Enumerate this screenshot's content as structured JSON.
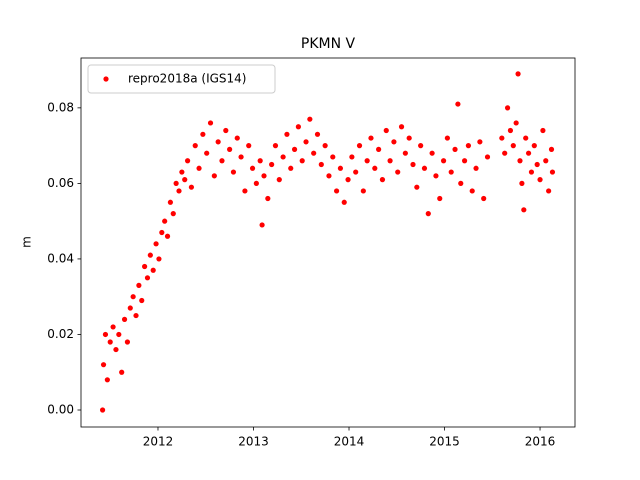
{
  "chart_data": {
    "type": "scatter",
    "title": "PKMN V",
    "ylabel": "m",
    "x": [
      2011.42,
      2011.43,
      2011.45,
      2011.47,
      2011.5,
      2011.53,
      2011.56,
      2011.59,
      2011.62,
      2011.65,
      2011.68,
      2011.71,
      2011.74,
      2011.77,
      2011.8,
      2011.83,
      2011.86,
      2011.89,
      2011.92,
      2011.95,
      2011.98,
      2012.01,
      2012.04,
      2012.07,
      2012.1,
      2012.13,
      2012.16,
      2012.19,
      2012.22,
      2012.25,
      2012.28,
      2012.31,
      2012.35,
      2012.39,
      2012.43,
      2012.47,
      2012.51,
      2012.55,
      2012.59,
      2012.63,
      2012.67,
      2012.71,
      2012.75,
      2012.79,
      2012.83,
      2012.87,
      2012.91,
      2012.95,
      2012.99,
      2013.03,
      2013.07,
      2013.09,
      2013.11,
      2013.15,
      2013.19,
      2013.23,
      2013.27,
      2013.31,
      2013.35,
      2013.39,
      2013.43,
      2013.47,
      2013.51,
      2013.55,
      2013.59,
      2013.63,
      2013.67,
      2013.71,
      2013.75,
      2013.79,
      2013.83,
      2013.87,
      2013.91,
      2013.95,
      2013.99,
      2014.03,
      2014.07,
      2014.11,
      2014.15,
      2014.19,
      2014.23,
      2014.27,
      2014.31,
      2014.35,
      2014.39,
      2014.43,
      2014.47,
      2014.51,
      2014.55,
      2014.59,
      2014.63,
      2014.67,
      2014.71,
      2014.75,
      2014.79,
      2014.83,
      2014.87,
      2014.91,
      2014.95,
      2014.99,
      2015.03,
      2015.07,
      2015.11,
      2015.14,
      2015.17,
      2015.21,
      2015.25,
      2015.29,
      2015.33,
      2015.37,
      2015.41,
      2015.45,
      2015.6,
      2015.63,
      2015.66,
      2015.69,
      2015.72,
      2015.75,
      2015.77,
      2015.79,
      2015.81,
      2015.83,
      2015.85,
      2015.88,
      2015.91,
      2015.94,
      2015.97,
      2016.0,
      2016.03,
      2016.06,
      2016.09,
      2016.12,
      2016.13
    ],
    "series": [
      {
        "name": "repro2018a (IGS14)",
        "color": "#ff0000",
        "values": [
          0.0,
          0.012,
          0.02,
          0.008,
          0.018,
          0.022,
          0.016,
          0.02,
          0.01,
          0.024,
          0.018,
          0.027,
          0.03,
          0.025,
          0.033,
          0.029,
          0.038,
          0.035,
          0.041,
          0.037,
          0.044,
          0.04,
          0.047,
          0.05,
          0.046,
          0.055,
          0.052,
          0.06,
          0.058,
          0.063,
          0.061,
          0.066,
          0.059,
          0.07,
          0.064,
          0.073,
          0.068,
          0.076,
          0.062,
          0.071,
          0.066,
          0.074,
          0.069,
          0.063,
          0.072,
          0.067,
          0.058,
          0.07,
          0.064,
          0.06,
          0.066,
          0.049,
          0.062,
          0.056,
          0.065,
          0.07,
          0.061,
          0.067,
          0.073,
          0.064,
          0.069,
          0.075,
          0.066,
          0.071,
          0.077,
          0.068,
          0.073,
          0.065,
          0.07,
          0.062,
          0.067,
          0.058,
          0.064,
          0.055,
          0.061,
          0.067,
          0.063,
          0.07,
          0.058,
          0.066,
          0.072,
          0.064,
          0.069,
          0.061,
          0.074,
          0.066,
          0.071,
          0.063,
          0.075,
          0.068,
          0.072,
          0.065,
          0.059,
          0.07,
          0.064,
          0.052,
          0.068,
          0.062,
          0.056,
          0.066,
          0.072,
          0.063,
          0.069,
          0.081,
          0.06,
          0.066,
          0.07,
          0.058,
          0.064,
          0.071,
          0.056,
          0.067,
          0.072,
          0.068,
          0.08,
          0.074,
          0.07,
          0.076,
          0.089,
          0.066,
          0.06,
          0.053,
          0.072,
          0.068,
          0.063,
          0.07,
          0.065,
          0.061,
          0.074,
          0.066,
          0.058,
          0.069,
          0.063
        ]
      }
    ],
    "xlim": [
      2011.194,
      2016.366
    ],
    "ylim": [
      -0.0045,
      0.0932
    ],
    "xticks": [
      2012,
      2013,
      2014,
      2015,
      2016
    ],
    "yticks": [
      {
        "value": 0,
        "label": "0.00"
      },
      0.02,
      0.04,
      0.06,
      0.08
    ],
    "legend": "upper left"
  }
}
